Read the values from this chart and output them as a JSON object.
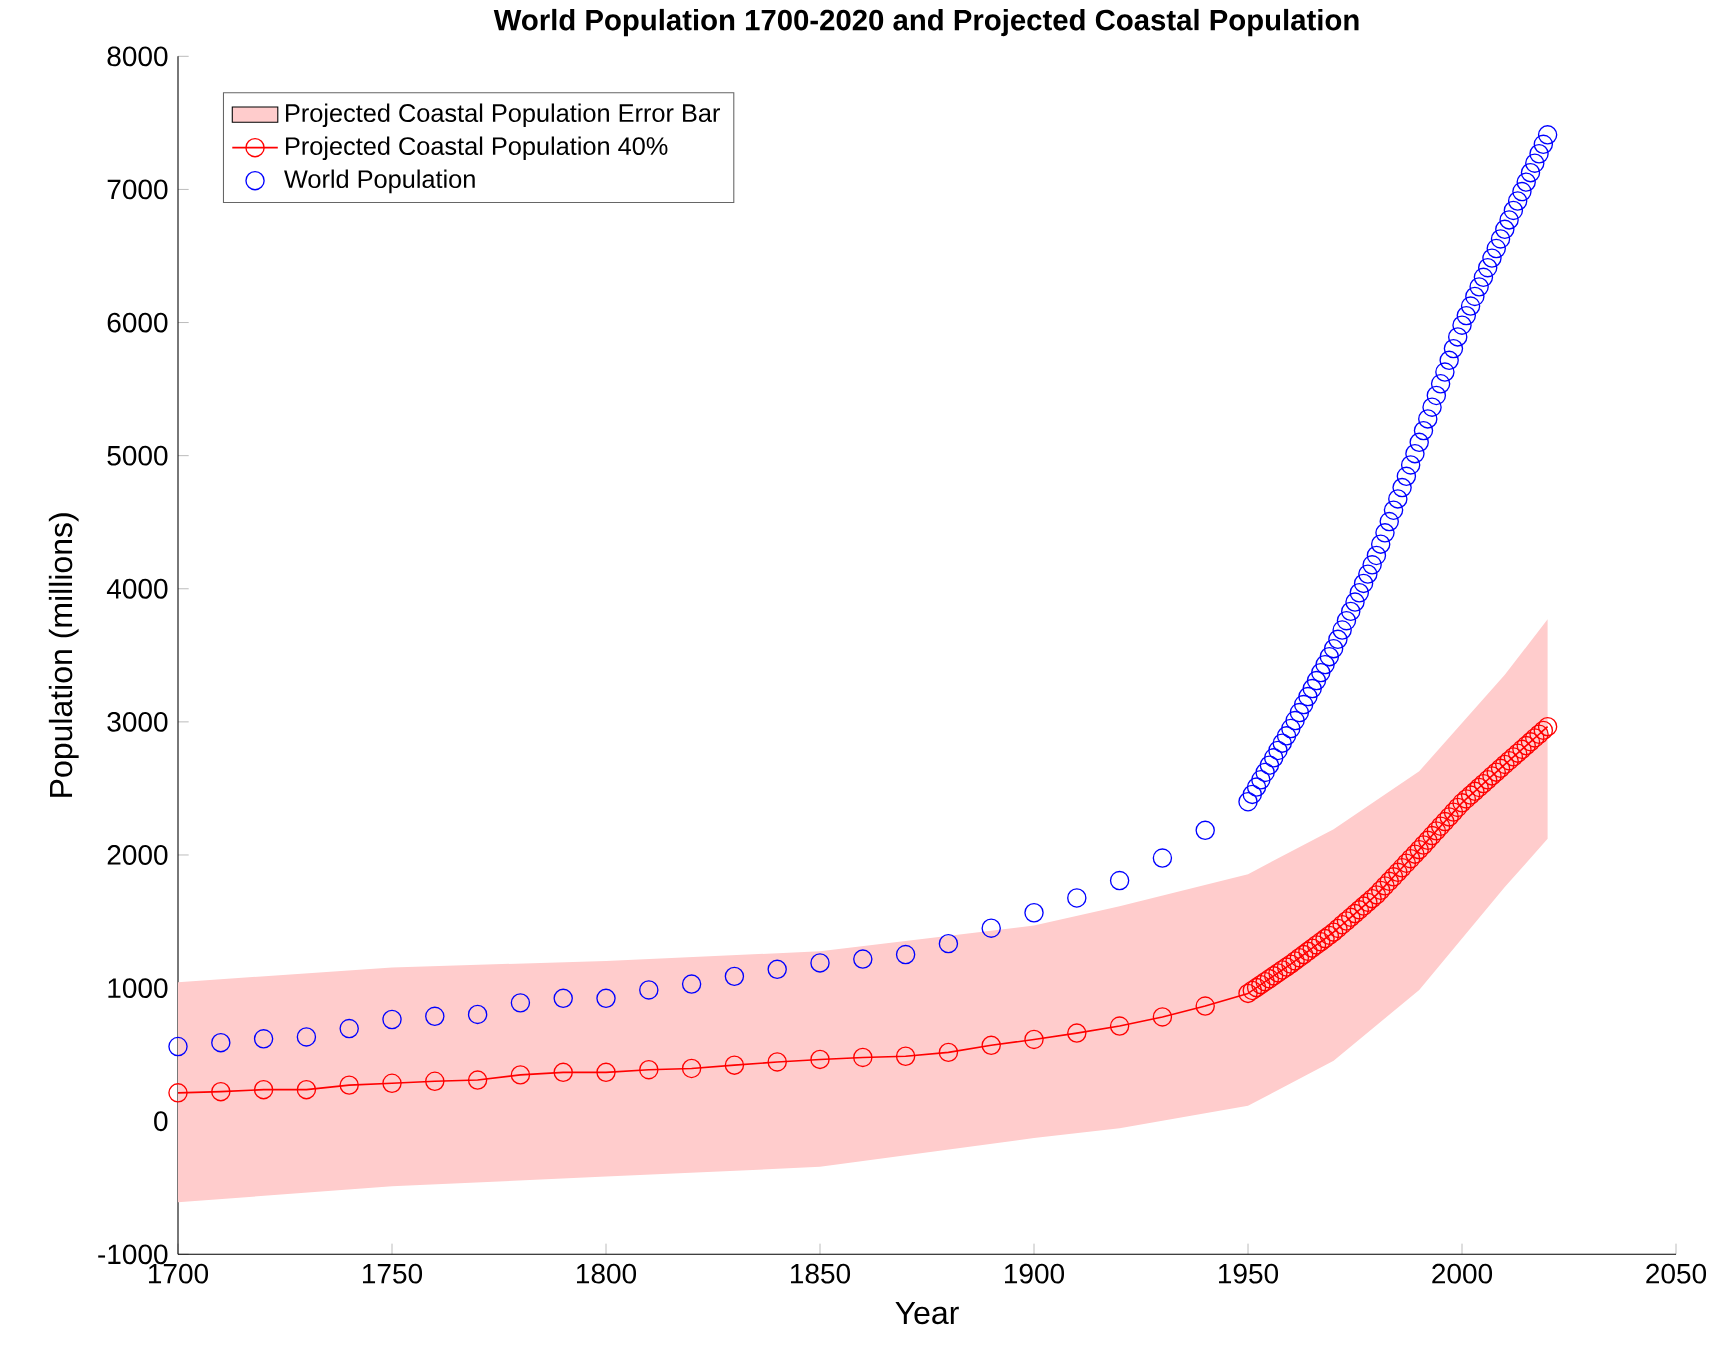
{
  "chart_data": {
    "type": "scatter",
    "title": "World Population 1700-2020 and Projected Coastal Population",
    "xlabel": "Year",
    "ylabel": "Population (millions)",
    "xlim": [
      1700,
      2050
    ],
    "xticks": [
      1700,
      1750,
      1800,
      1850,
      1900,
      1950,
      2000,
      2050
    ],
    "ylim": [
      -1000,
      8000
    ],
    "yticks": [
      -1000,
      0,
      1000,
      2000,
      3000,
      4000,
      5000,
      6000,
      7000,
      8000
    ],
    "grid": false,
    "legend": "top left",
    "marker": "circle",
    "series": [
      {
        "name": "Projected Coastal Population Error Bar",
        "type": "area",
        "color": "#ffcccc",
        "x": [
          1700,
          1750,
          1800,
          1850,
          1900,
          1920,
          1950,
          1970,
          1990,
          2010,
          2020
        ],
        "values": [
          null,
          null,
          null,
          null,
          null,
          null,
          null,
          null,
          null,
          null,
          null
        ],
        "lower": [
          -609,
          -489,
          -416,
          -343,
          -126,
          -53,
          116,
          454,
          986,
          1759,
          2121
        ],
        "upper": [
          1044,
          1155,
          1204,
          1276,
          1470,
          1614,
          1856,
          2194,
          2629,
          3354,
          3770
        ]
      },
      {
        "name": "Projected Coastal Population 40%",
        "type": "line",
        "color": "#ff0000",
        "x": [
          1700,
          1710,
          1720,
          1730,
          1740,
          1750,
          1760,
          1770,
          1780,
          1790,
          1800,
          1810,
          1820,
          1830,
          1840,
          1850,
          1860,
          1870,
          1880,
          1890,
          1900,
          1910,
          1920,
          1930,
          1940,
          1950,
          1951,
          1952,
          1953,
          1954,
          1955,
          1956,
          1957,
          1958,
          1959,
          1960,
          1961,
          1962,
          1963,
          1964,
          1965,
          1966,
          1967,
          1968,
          1969,
          1970,
          1971,
          1972,
          1973,
          1974,
          1975,
          1976,
          1977,
          1978,
          1979,
          1980,
          1981,
          1982,
          1983,
          1984,
          1985,
          1986,
          1987,
          1988,
          1989,
          1990,
          1991,
          1992,
          1993,
          1994,
          1995,
          1996,
          1997,
          1998,
          1999,
          2000,
          2001,
          2002,
          2003,
          2004,
          2005,
          2006,
          2007,
          2008,
          2009,
          2010,
          2011,
          2012,
          2013,
          2014,
          2015,
          2016,
          2017,
          2018,
          2019,
          2020
        ],
        "values": [
          213,
          222,
          237,
          237,
          271,
          285,
          300,
          309,
          348,
          367,
          367,
          387,
          396,
          421,
          445,
          464,
          479,
          488,
          517,
          570,
          614,
          662,
          715,
          783,
          865,
          960,
          982,
          1004,
          1026,
          1048,
          1070,
          1092,
          1114,
          1136,
          1158,
          1180,
          1204,
          1228,
          1252,
          1276,
          1300,
          1324,
          1348,
          1372,
          1396,
          1420,
          1448,
          1476,
          1504,
          1532,
          1560,
          1588,
          1616,
          1644,
          1672,
          1700,
          1734,
          1768,
          1802,
          1836,
          1870,
          1904,
          1938,
          1972,
          2006,
          2040,
          2075,
          2110,
          2146,
          2181,
          2216,
          2251,
          2286,
          2322,
          2357,
          2392,
          2421,
          2450,
          2478,
          2507,
          2536,
          2565,
          2594,
          2622,
          2651,
          2680,
          2708,
          2737,
          2765,
          2794,
          2822,
          2850,
          2879,
          2907,
          2936,
          2964
        ]
      },
      {
        "name": "World Population",
        "color": "#0000ff",
        "x": [
          1700,
          1710,
          1720,
          1730,
          1740,
          1750,
          1760,
          1770,
          1780,
          1790,
          1800,
          1810,
          1820,
          1830,
          1840,
          1850,
          1860,
          1870,
          1880,
          1890,
          1900,
          1910,
          1920,
          1930,
          1940,
          1950,
          1951,
          1952,
          1953,
          1954,
          1955,
          1956,
          1957,
          1958,
          1959,
          1960,
          1961,
          1962,
          1963,
          1964,
          1965,
          1966,
          1967,
          1968,
          1969,
          1970,
          1971,
          1972,
          1973,
          1974,
          1975,
          1976,
          1977,
          1978,
          1979,
          1980,
          1981,
          1982,
          1983,
          1984,
          1985,
          1986,
          1987,
          1988,
          1989,
          1990,
          1991,
          1992,
          1993,
          1994,
          1995,
          1996,
          1997,
          1998,
          1999,
          2000,
          2001,
          2002,
          2003,
          2004,
          2005,
          2006,
          2007,
          2008,
          2009,
          2010,
          2011,
          2012,
          2013,
          2014,
          2015,
          2016,
          2017,
          2018,
          2019,
          2020
        ],
        "values": [
          561,
          590,
          619,
          633,
          696,
          764,
          788,
          802,
          889,
          923,
          923,
          986,
          1030,
          1088,
          1141,
          1189,
          1218,
          1252,
          1334,
          1450,
          1566,
          1677,
          1808,
          1977,
          2185,
          2400,
          2455,
          2510,
          2565,
          2620,
          2675,
          2730,
          2785,
          2840,
          2895,
          2950,
          3010,
          3070,
          3130,
          3190,
          3250,
          3310,
          3370,
          3430,
          3490,
          3550,
          3620,
          3690,
          3760,
          3830,
          3900,
          3970,
          4040,
          4110,
          4180,
          4250,
          4335,
          4420,
          4505,
          4590,
          4675,
          4760,
          4845,
          4930,
          5015,
          5100,
          5188,
          5276,
          5364,
          5452,
          5540,
          5628,
          5716,
          5804,
          5892,
          5980,
          6052,
          6124,
          6196,
          6268,
          6340,
          6412,
          6484,
          6556,
          6628,
          6700,
          6771,
          6842,
          6913,
          6984,
          7055,
          7126,
          7197,
          7268,
          7339,
          7410
        ]
      }
    ]
  }
}
